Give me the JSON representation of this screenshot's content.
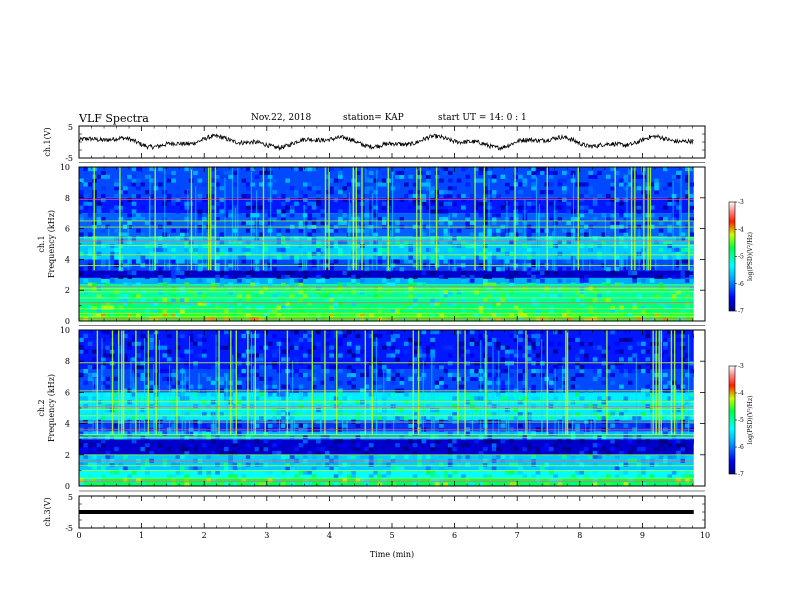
{
  "header": {
    "title": "VLF Spectra",
    "date": "Nov.22, 2018",
    "station": "station= KAP",
    "start": "start  UT =   14: 0  : 1"
  },
  "chart_data": [
    {
      "type": "line",
      "ylabel": "ch.1(V)",
      "yticks": [
        "5",
        "-5"
      ],
      "ylim": [
        -5,
        5
      ],
      "xlim": [
        0,
        10
      ],
      "x_end": 9.82,
      "description_values": "noisy waveform oscillating roughly between -2 and 2 V",
      "y_range_shown": [
        -2,
        2
      ]
    },
    {
      "type": "heatmap",
      "ylabel": "ch.1\nFrequency (kHz)",
      "ylabel_lines": [
        "ch.1",
        "Frequency  (kHz)"
      ],
      "yticks": [
        "0",
        "2",
        "4",
        "6",
        "8",
        "10"
      ],
      "ylim": [
        0,
        10
      ],
      "xlim": [
        0,
        10
      ],
      "colorbar": {
        "label": "log(PSD)(V²/Hz)",
        "ticks": [
          "-3",
          "-4",
          "-5",
          "-6",
          "-7"
        ],
        "range": [
          -7,
          -3
        ]
      },
      "bands": [
        {
          "from": 0,
          "to": 0.5,
          "level": -4.6
        },
        {
          "from": 0.5,
          "to": 1.2,
          "level": -4.9
        },
        {
          "from": 1.2,
          "to": 2.4,
          "level": -5.0
        },
        {
          "from": 2.4,
          "to": 2.8,
          "level": -5.8
        },
        {
          "from": 2.8,
          "to": 3.3,
          "level": -6.7
        },
        {
          "from": 3.3,
          "to": 4.0,
          "level": -6.2
        },
        {
          "from": 4.0,
          "to": 5.5,
          "level": -5.6
        },
        {
          "from": 5.5,
          "to": 7.0,
          "level": -6.1
        },
        {
          "from": 7.0,
          "to": 8.0,
          "level": -6.4
        },
        {
          "from": 8.0,
          "to": 10,
          "level": -6.2
        }
      ],
      "lines_khz": [
        0.15,
        0.3,
        0.5,
        0.8,
        1.2,
        1.5,
        1.9,
        2.1,
        2.25,
        3.6,
        4.3,
        4.9,
        5.2,
        5.4,
        6.1,
        6.5,
        7.9
      ]
    },
    {
      "type": "heatmap",
      "ylabel_lines": [
        "ch.2",
        "Frequency  (kHz)"
      ],
      "yticks": [
        "0",
        "2",
        "4",
        "6",
        "8",
        "10"
      ],
      "ylim": [
        0,
        10
      ],
      "xlim": [
        0,
        10
      ],
      "colorbar": {
        "label": "log(PSD)(V²/Hz)",
        "ticks": [
          "-3",
          "-4",
          "-5",
          "-6",
          "-7"
        ],
        "range": [
          -7,
          -3
        ]
      },
      "bands": [
        {
          "from": 0,
          "to": 0.5,
          "level": -4.8
        },
        {
          "from": 0.5,
          "to": 1.0,
          "level": -5.3
        },
        {
          "from": 1.0,
          "to": 2.0,
          "level": -5.6
        },
        {
          "from": 2.0,
          "to": 3.0,
          "level": -6.7
        },
        {
          "from": 3.0,
          "to": 3.5,
          "level": -5.7
        },
        {
          "from": 3.5,
          "to": 4.2,
          "level": -6.3
        },
        {
          "from": 4.2,
          "to": 6.0,
          "level": -5.4
        },
        {
          "from": 6.0,
          "to": 7.5,
          "level": -6.2
        },
        {
          "from": 7.5,
          "to": 10,
          "level": -6.4
        }
      ],
      "lines_khz": [
        0.3,
        0.5,
        1.0,
        1.3,
        1.6,
        2.0,
        3.1,
        3.3,
        3.6,
        4.1,
        4.5,
        4.9,
        5.1,
        5.4,
        6.1,
        7.9
      ]
    },
    {
      "type": "line",
      "ylabel": "ch.3(V)",
      "yticks": [
        "5",
        "-5"
      ],
      "ylim": [
        -5,
        5
      ],
      "xlim": [
        0,
        10
      ],
      "x_end": 9.82,
      "value": 0,
      "xlabel": "Time  (min)",
      "xticks": [
        "0",
        "1",
        "2",
        "3",
        "4",
        "5",
        "6",
        "7",
        "8",
        "9",
        "10"
      ]
    }
  ]
}
